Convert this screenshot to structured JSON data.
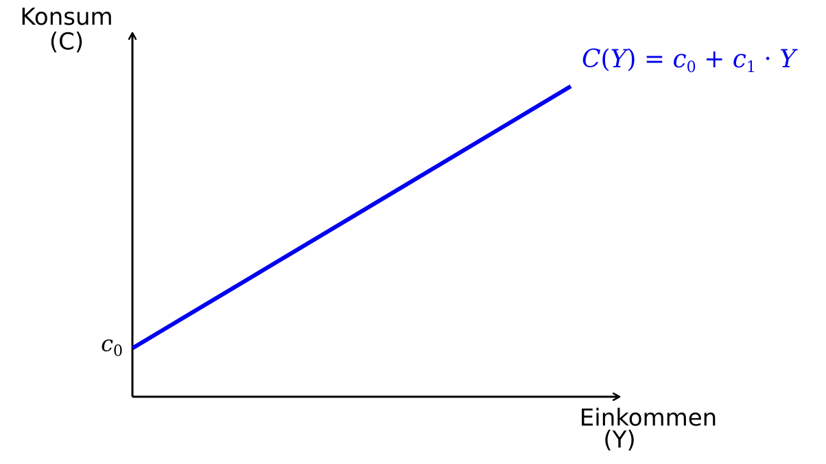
{
  "chart_data": {
    "type": "line",
    "title": "",
    "ylabel": "Konsum",
    "ylabel_symbol": "(C)",
    "xlabel": "Einkommen",
    "xlabel_symbol": "(Y)",
    "y_ticks": [
      {
        "value": 1,
        "label_main": "c",
        "label_sub": "0"
      }
    ],
    "xlim": [
      0,
      10
    ],
    "ylim": [
      0,
      7.5
    ],
    "grid": false,
    "series": [
      {
        "name": "C(Y) = c0 + c1 · Y",
        "color": "#0000ee",
        "x": [
          0,
          9
        ],
        "y": [
          1,
          6.4
        ]
      }
    ],
    "curve_label": {
      "C": "C",
      "open": "(",
      "Y1": "Y",
      "close_eq": ") = ",
      "c0": "c",
      "c0_sub": "0",
      "plus": " + ",
      "c1": "c",
      "c1_sub": "1",
      "dot": " · ",
      "Y2": "Y"
    }
  }
}
